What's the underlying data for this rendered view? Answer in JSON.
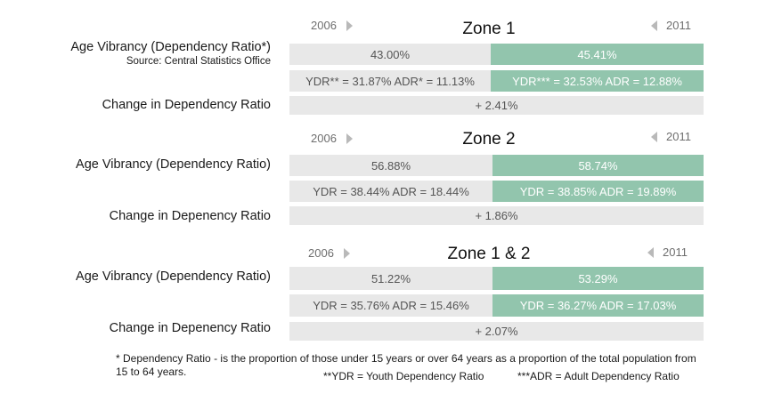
{
  "zones": [
    {
      "title": "Zone 1",
      "year_left": "2006",
      "year_right": "2011",
      "vibrancy_label": "Age Vibrancy (Dependency Ratio*)",
      "source": "Source: Central Statistics Office",
      "val_2006": "43.00%",
      "val_2011": "45.41%",
      "breakdown_2006": "YDR** = 31.87% ADR* = 11.13%",
      "breakdown_2011": "YDR*** = 32.53% ADR = 12.88%",
      "change_label": "Change in Dependency Ratio",
      "change_value": "+ 2.41%"
    },
    {
      "title": "Zone 2",
      "year_left": "2006",
      "year_right": "2011",
      "vibrancy_label": "Age Vibrancy (Dependency Ratio)",
      "val_2006": "56.88%",
      "val_2011": "58.74%",
      "breakdown_2006": "YDR = 38.44% ADR = 18.44%",
      "breakdown_2011": "YDR = 38.85% ADR = 19.89%",
      "change_label": "Change in Depenency Ratio",
      "change_value": "+ 1.86%"
    },
    {
      "title": "Zone 1 & 2",
      "year_left": "2006",
      "year_right": "2011",
      "vibrancy_label": "Age Vibrancy (Dependency Ratio)",
      "val_2006": "51.22%",
      "val_2011": "53.29%",
      "breakdown_2006": "YDR = 35.76% ADR = 15.46%",
      "breakdown_2011": "YDR = 36.27% ADR =  17.03%",
      "change_label": "Change in Depenency Ratio",
      "change_value": "+ 2.07%"
    }
  ],
  "footnote": {
    "definition": "* Dependency Ratio - is the proportion of those under 15 years or over 64 years as a proportion of the total population from 15 to 64 years.",
    "ydr": "**YDR = Youth Dependency Ratio",
    "adr": "***ADR = Adult Dependency Ratio"
  },
  "colors": {
    "grey": "#e8e8e8",
    "green": "#92c5ad"
  }
}
